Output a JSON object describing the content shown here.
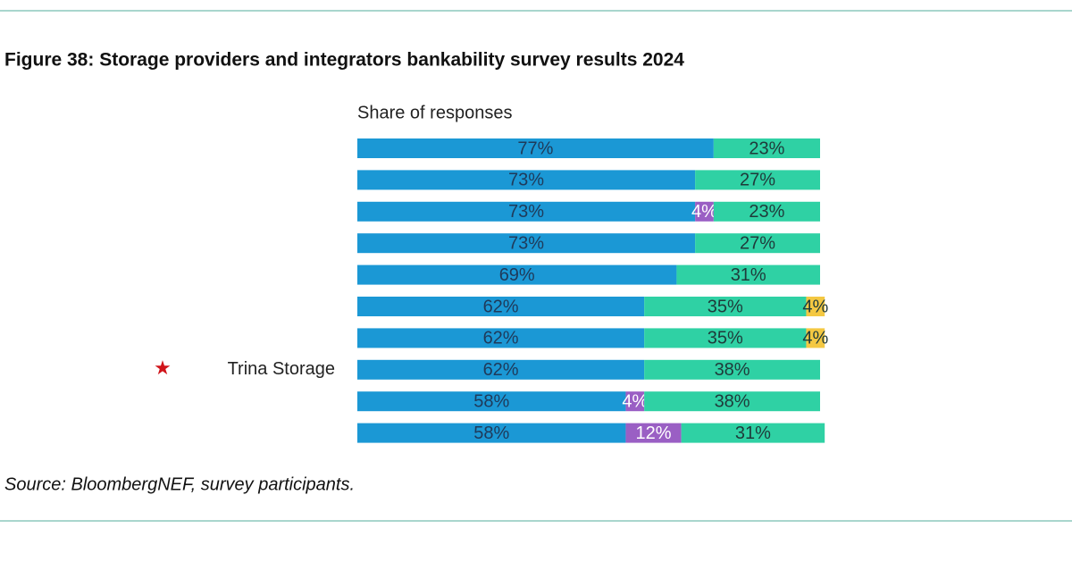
{
  "chart_data": {
    "type": "stacked-bar-horizontal",
    "title": "Figure 38: Storage providers and integrators bankability survey results 2024",
    "x_label": "Share of responses",
    "source": "Source: BloombergNEF, survey participants.",
    "categories": [
      null,
      null,
      null,
      null,
      null,
      null,
      null,
      "Trina Storage",
      null,
      null
    ],
    "xlim": [
      0,
      100
    ],
    "series": [
      {
        "color": "#1b98d5",
        "label_color": "#1f3a5a",
        "values": [
          77,
          73,
          73,
          73,
          69,
          62,
          62,
          62,
          58,
          58
        ],
        "value_labels": [
          "77%",
          "73%",
          "73%",
          "73%",
          "69%",
          "62%",
          "62%",
          "62%",
          "58%",
          "58%"
        ]
      },
      {
        "color": "#9a5fc4",
        "label_color": "#ffffff",
        "values": [
          null,
          null,
          4,
          null,
          null,
          null,
          null,
          null,
          4,
          12
        ],
        "value_labels": [
          null,
          null,
          "4%",
          null,
          null,
          null,
          null,
          null,
          "4%",
          "12%"
        ]
      },
      {
        "color": "#2fd1a4",
        "label_color": "#1f3a3a",
        "values": [
          23,
          27,
          23,
          27,
          31,
          35,
          35,
          38,
          38,
          31
        ],
        "value_labels": [
          "23%",
          "27%",
          "23%",
          "27%",
          "31%",
          "35%",
          "35%",
          "38%",
          "38%",
          "31%"
        ]
      },
      {
        "color": "#f4c842",
        "label_color": "#1f3a3a",
        "values": [
          null,
          null,
          null,
          null,
          null,
          4,
          4,
          null,
          null,
          null
        ],
        "value_labels": [
          null,
          null,
          null,
          null,
          null,
          "4%",
          "4%",
          null,
          null,
          null
        ]
      }
    ]
  }
}
